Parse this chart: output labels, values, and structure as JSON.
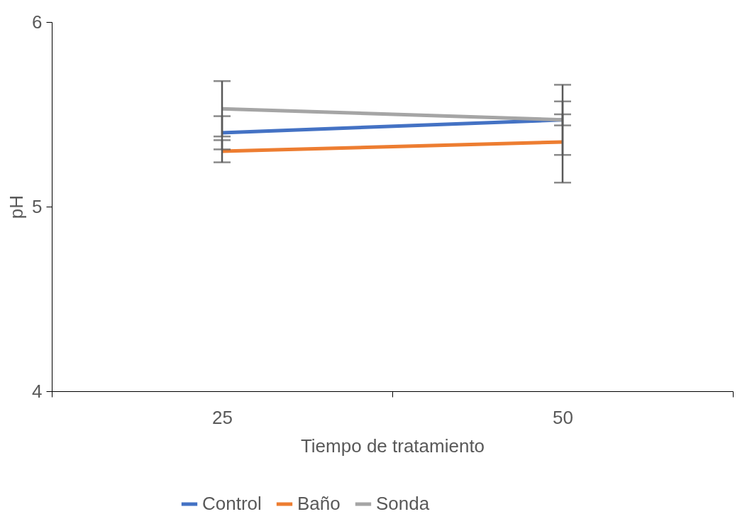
{
  "chart_data": {
    "type": "line",
    "xlabel": "Tiempo de tratamiento",
    "ylabel": "pH",
    "categories": [
      "25",
      "50"
    ],
    "series": [
      {
        "name": "Control",
        "color": "#4472c4",
        "values": [
          5.4,
          5.47
        ],
        "errors": [
          0.09,
          0.03
        ]
      },
      {
        "name": "Baño",
        "color": "#ed7d31",
        "values": [
          5.3,
          5.35
        ],
        "errors": [
          0.06,
          0.22
        ]
      },
      {
        "name": "Sonda",
        "color": "#a5a5a5",
        "values": [
          5.53,
          5.47
        ],
        "errors": [
          0.15,
          0.19
        ]
      }
    ],
    "ylim": [
      4,
      6
    ],
    "yticks": [
      4,
      5,
      6
    ],
    "grid": false,
    "legend": "bottom",
    "marker": "none",
    "line_style": "solid"
  }
}
